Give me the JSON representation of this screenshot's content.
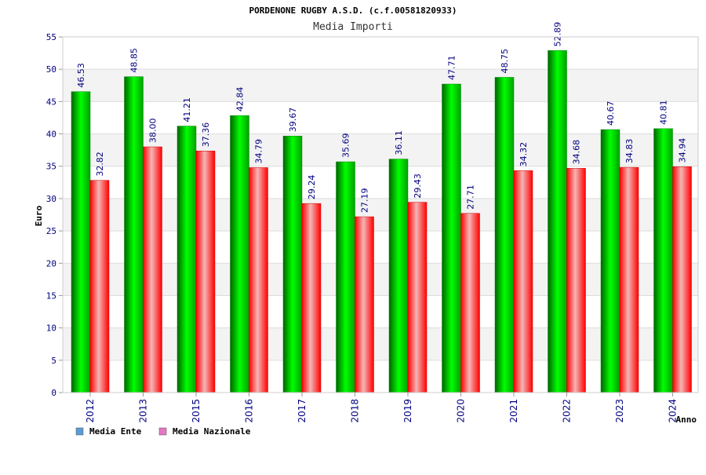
{
  "chart_data": {
    "type": "bar",
    "title": "PORDENONE RUGBY A.S.D. (c.f.00581820933)",
    "subtitle": "Media Importi",
    "xlabel": "Anno",
    "ylabel": "Euro",
    "categories": [
      "2012",
      "2013",
      "2015",
      "2016",
      "2017",
      "2018",
      "2019",
      "2020",
      "2021",
      "2022",
      "2023",
      "2024"
    ],
    "ylim": [
      0,
      55
    ],
    "yticks": [
      0,
      5,
      10,
      15,
      20,
      25,
      30,
      35,
      40,
      45,
      50,
      55
    ],
    "grid": true,
    "legend_position": "bottom-left",
    "series": [
      {
        "name": "Media Ente",
        "color": "#00c000",
        "legend_color": "#5b9bd5",
        "values": [
          46.53,
          48.85,
          41.21,
          42.84,
          39.67,
          35.69,
          36.11,
          47.71,
          48.75,
          52.89,
          40.67,
          40.81
        ],
        "labels": [
          "46.53",
          "48.85",
          "41.21",
          "42.84",
          "39.67",
          "35.69",
          "36.11",
          "47.71",
          "48.75",
          "52.89",
          "40.67",
          "40.81"
        ]
      },
      {
        "name": "Media Nazionale",
        "color": "#ff0000",
        "legend_color": "#e377c2",
        "values": [
          32.82,
          38.0,
          37.36,
          34.79,
          29.24,
          27.19,
          29.43,
          27.71,
          34.32,
          34.68,
          34.83,
          34.94
        ],
        "labels": [
          "32.82",
          "38.00",
          "37.36",
          "34.79",
          "29.24",
          "27.19",
          "29.43",
          "27.71",
          "34.32",
          "34.68",
          "34.83",
          "34.94"
        ]
      }
    ]
  }
}
